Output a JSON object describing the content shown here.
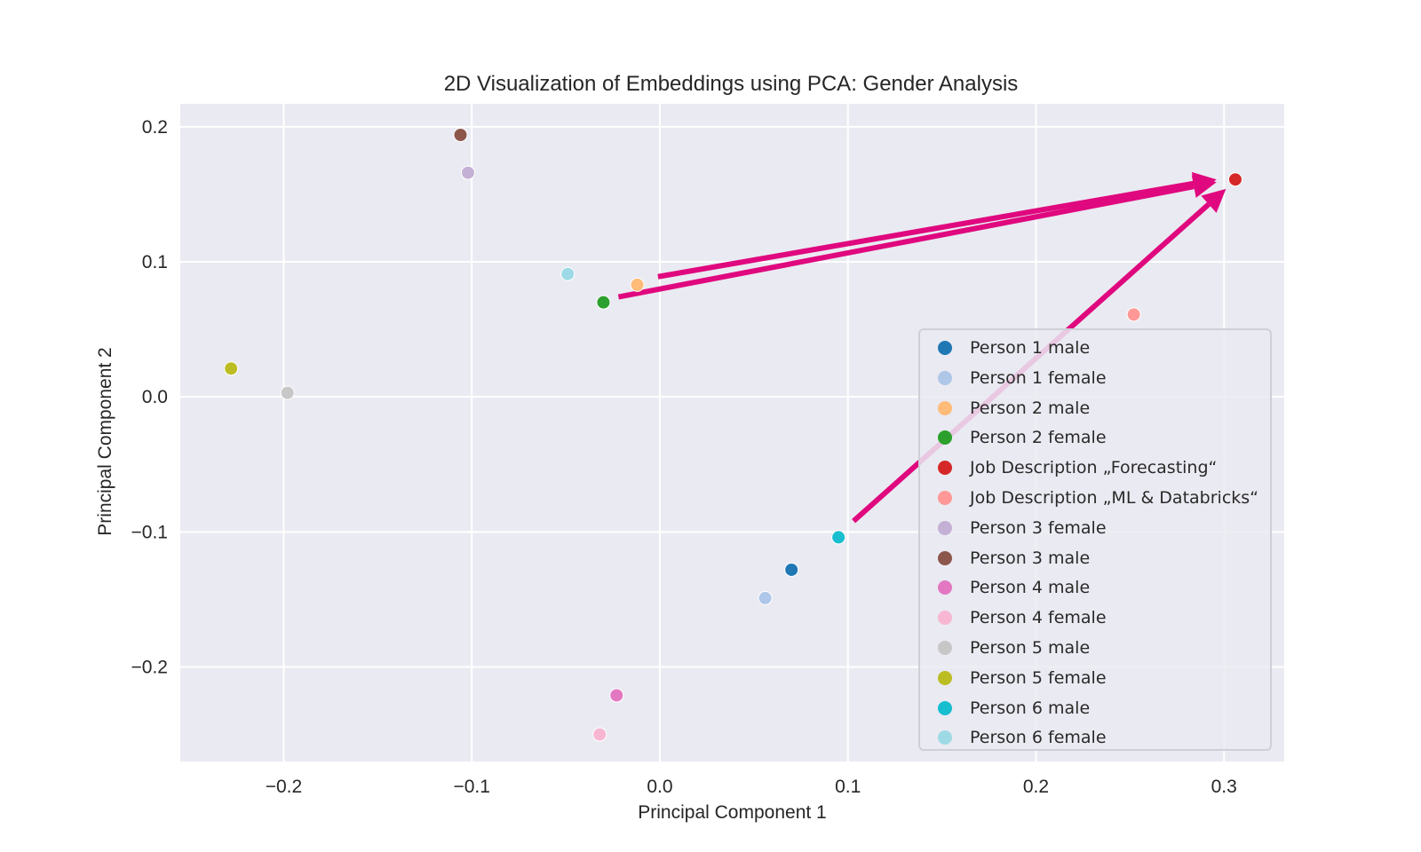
{
  "chart_data": {
    "type": "scatter",
    "title": "2D Visualization of Embeddings using PCA: Gender Analysis",
    "xlabel": "Principal Component 1",
    "ylabel": "Principal Component 2",
    "xlim": [
      -0.255,
      0.332
    ],
    "ylim": [
      -0.27,
      0.217
    ],
    "xticks": [
      -0.2,
      -0.1,
      0.0,
      0.1,
      0.2,
      0.3
    ],
    "xtick_labels": [
      "−0.2",
      "−0.1",
      "0.0",
      "0.1",
      "0.2",
      "0.3"
    ],
    "yticks": [
      -0.2,
      -0.1,
      0.0,
      0.1,
      0.2
    ],
    "ytick_labels": [
      "−0.2",
      "−0.1",
      "0.0",
      "0.1",
      "0.2"
    ],
    "grid": true,
    "legend_position": "lower-right",
    "series": [
      {
        "name": "Person 1 male",
        "color": "#1f77b4",
        "x": 0.07,
        "y": -0.128
      },
      {
        "name": "Person 1 female",
        "color": "#aec7e8",
        "x": 0.056,
        "y": -0.149
      },
      {
        "name": "Person 2 male",
        "color": "#ffbb78",
        "x": -0.012,
        "y": 0.083
      },
      {
        "name": "Person 2 female",
        "color": "#2ca02c",
        "x": -0.03,
        "y": 0.07
      },
      {
        "name": "Job Description „Forecasting“",
        "color": "#d62728",
        "x": 0.306,
        "y": 0.161
      },
      {
        "name": "Job Description „ML & Databricks“",
        "color": "#ff9896",
        "x": 0.252,
        "y": 0.061
      },
      {
        "name": "Person 3 female",
        "color": "#c5b0d5",
        "x": -0.102,
        "y": 0.166
      },
      {
        "name": "Person 3 male",
        "color": "#8c564b",
        "x": -0.106,
        "y": 0.194
      },
      {
        "name": "Person 4 male",
        "color": "#e377c2",
        "x": -0.023,
        "y": -0.221
      },
      {
        "name": "Person 4 female",
        "color": "#f7b6d2",
        "x": -0.032,
        "y": -0.25
      },
      {
        "name": "Person 5 male",
        "color": "#c7c7c7",
        "x": -0.198,
        "y": 0.003
      },
      {
        "name": "Person 5 female",
        "color": "#bcbd22",
        "x": -0.228,
        "y": 0.021
      },
      {
        "name": "Person 6 male",
        "color": "#17becf",
        "x": 0.095,
        "y": -0.104
      },
      {
        "name": "Person 6 female",
        "color": "#9edae5",
        "x": -0.049,
        "y": 0.091
      }
    ],
    "annotations": [
      {
        "type": "arrow",
        "color": "#e0087e",
        "from": [
          -0.001,
          0.089
        ],
        "to": [
          0.296,
          0.161
        ]
      },
      {
        "type": "arrow",
        "color": "#e0087e",
        "from": [
          -0.022,
          0.074
        ],
        "to": [
          0.296,
          0.159
        ]
      },
      {
        "type": "arrow",
        "color": "#e0087e",
        "from": [
          0.103,
          -0.092
        ],
        "to": [
          0.301,
          0.154
        ]
      }
    ]
  }
}
